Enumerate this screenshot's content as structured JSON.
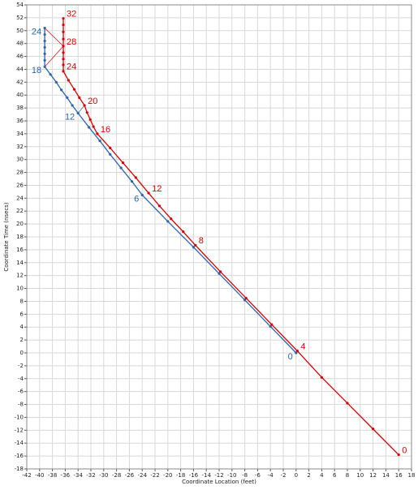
{
  "chart_data": {
    "type": "line",
    "xlabel": "Coordinate Location (feet)",
    "ylabel": "Coordinate Time (nsecs)",
    "xlim": [
      -42,
      18
    ],
    "ylim": [
      -18,
      54
    ],
    "xticks": [
      -42,
      -40,
      -38,
      -36,
      -34,
      -32,
      -30,
      -28,
      -26,
      -24,
      -22,
      -20,
      -18,
      -16,
      -14,
      -12,
      -10,
      -8,
      -6,
      -4,
      -2,
      0,
      2,
      4,
      6,
      8,
      10,
      12,
      14,
      16,
      18
    ],
    "yticks": [
      -18,
      -16,
      -14,
      -12,
      -10,
      -8,
      -6,
      -4,
      -2,
      0,
      2,
      4,
      6,
      8,
      10,
      12,
      14,
      16,
      18,
      20,
      22,
      24,
      26,
      28,
      30,
      32,
      34,
      36,
      38,
      40,
      42,
      44,
      46,
      48,
      50,
      52,
      54
    ],
    "grid": true,
    "series": [
      {
        "color": "#2a64b0",
        "x": [
          0,
          -4,
          -8,
          -12,
          -16,
          -20,
          -24,
          -25.6,
          -27.3,
          -29,
          -30.6,
          -32.3,
          -34,
          -34.9,
          -35.7,
          -36.6,
          -37.4,
          -38.3,
          -39.2,
          -39.2,
          -39.2,
          -39.2,
          -39.2,
          -39.2,
          -39.2
        ],
        "values": [
          0,
          4.1,
          8.2,
          12.3,
          16.4,
          20.4,
          24.5,
          26.6,
          28.7,
          30.8,
          32.9,
          35,
          37.2,
          38.4,
          39.6,
          40.8,
          42,
          43.2,
          44.4,
          45.4,
          46.4,
          47.4,
          48.4,
          49.4,
          50.4
        ],
        "point_labels": [
          "0",
          null,
          null,
          null,
          null,
          null,
          "6",
          null,
          null,
          null,
          null,
          null,
          "12",
          null,
          null,
          null,
          null,
          null,
          "18",
          null,
          null,
          null,
          null,
          null,
          "24"
        ]
      },
      {
        "color": "#e00000",
        "x": [
          16,
          12,
          8,
          4,
          0.2,
          -3.8,
          -7.8,
          -11.8,
          -15.7,
          -17.6,
          -19.5,
          -21.3,
          -23,
          -25,
          -27,
          -29,
          -31,
          -31.6,
          -32.1,
          -32.6,
          -33,
          -33.8,
          -34.6,
          -35.5,
          -36.3,
          -36.3,
          -36.3,
          -36.3,
          -36.3,
          -36.3,
          -36.3,
          -36.3,
          -36.3
        ],
        "values": [
          -15.8,
          -11.8,
          -7.8,
          -3.8,
          0.3,
          4.4,
          8.5,
          12.6,
          16.7,
          18.8,
          20.8,
          22.8,
          24.8,
          27.2,
          29.5,
          31.8,
          34,
          35.1,
          36.2,
          37.3,
          38.4,
          39.6,
          40.9,
          42.3,
          43.7,
          44.7,
          45.6,
          46.6,
          47.6,
          48.7,
          49.8,
          50.9,
          51.9
        ],
        "point_labels": [
          "0",
          null,
          null,
          null,
          "4",
          null,
          null,
          null,
          "8",
          null,
          null,
          null,
          "12",
          null,
          null,
          null,
          "16",
          null,
          null,
          null,
          "20",
          null,
          null,
          null,
          "24",
          null,
          null,
          null,
          "28",
          null,
          null,
          null,
          "32"
        ]
      }
    ]
  }
}
